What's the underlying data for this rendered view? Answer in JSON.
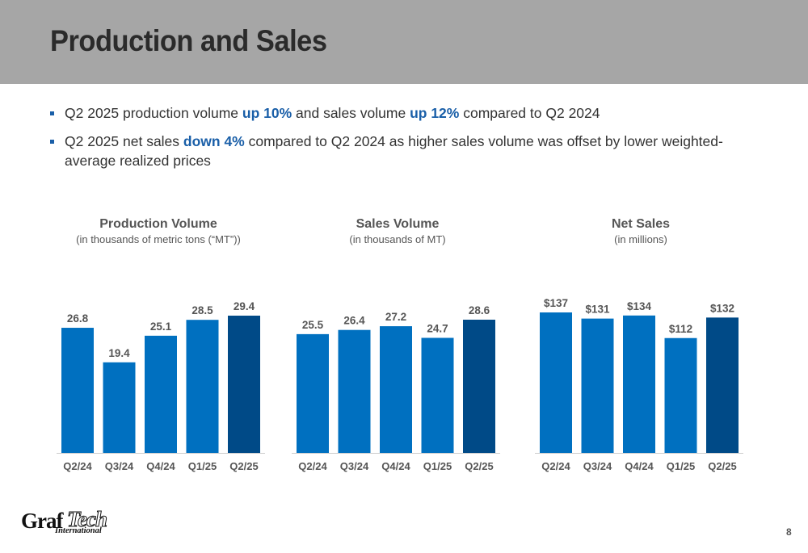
{
  "title": "Production and Sales",
  "bullets": [
    {
      "parts": [
        {
          "text": "Q2 2025 production volume ",
          "hl": false
        },
        {
          "text": "up 10%",
          "hl": true
        },
        {
          "text": " and sales volume ",
          "hl": false
        },
        {
          "text": "up 12%",
          "hl": true
        },
        {
          "text": " compared to Q2 2024",
          "hl": false
        }
      ]
    },
    {
      "parts": [
        {
          "text": "Q2 2025 net sales ",
          "hl": false
        },
        {
          "text": "down 4%",
          "hl": true
        },
        {
          "text": " compared to Q2 2024 as higher sales volume was offset by lower weighted-average realized prices",
          "hl": false
        }
      ]
    }
  ],
  "colors": {
    "bar": "#0070c0",
    "bar_latest": "#004a87",
    "highlight": "#1a5fa8",
    "header": "#a6a6a6",
    "baseline": "#cccccc"
  },
  "chart_data": [
    {
      "type": "bar",
      "title": "Production Volume",
      "subtitle": "(in thousands of metric tons (“MT”))",
      "categories": [
        "Q2/24",
        "Q3/24",
        "Q4/24",
        "Q1/25",
        "Q2/25"
      ],
      "values": [
        26.8,
        19.4,
        25.1,
        28.5,
        29.4
      ],
      "labels": [
        "26.8",
        "19.4",
        "25.1",
        "28.5",
        "29.4"
      ],
      "ylim": [
        0,
        29.4
      ]
    },
    {
      "type": "bar",
      "title": "Sales Volume",
      "subtitle": "(in thousands of MT)",
      "categories": [
        "Q2/24",
        "Q3/24",
        "Q4/24",
        "Q1/25",
        "Q2/25"
      ],
      "values": [
        25.5,
        26.4,
        27.2,
        24.7,
        28.6
      ],
      "labels": [
        "25.5",
        "26.4",
        "27.2",
        "24.7",
        "28.6"
      ],
      "ylim": [
        0,
        28.6
      ]
    },
    {
      "type": "bar",
      "title": "Net Sales",
      "subtitle": "(in millions)",
      "categories": [
        "Q2/24",
        "Q3/24",
        "Q4/24",
        "Q1/25",
        "Q2/25"
      ],
      "values": [
        137,
        131,
        134,
        112,
        132
      ],
      "labels": [
        "$137",
        "$131",
        "$134",
        "$112",
        "$132"
      ],
      "ylim": [
        0,
        137
      ]
    }
  ],
  "logo": {
    "part1": "Graf",
    "part2": "Tech",
    "part3": "International"
  },
  "page_number": "8"
}
